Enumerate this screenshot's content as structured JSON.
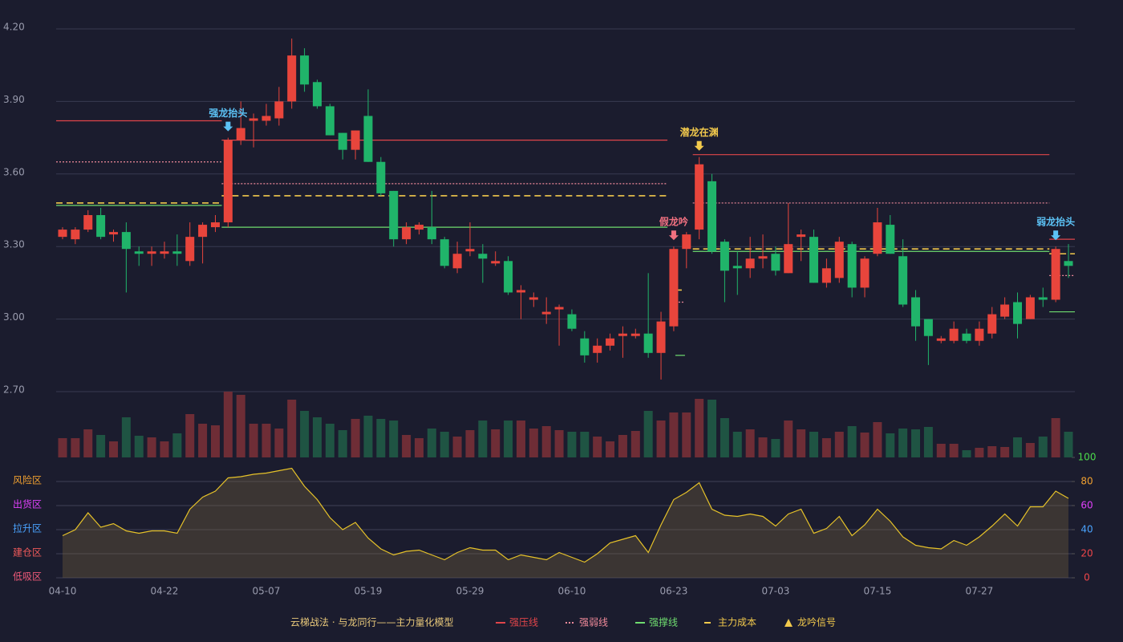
{
  "chart_data": {
    "type": "candlestick",
    "title": "云梯战法 · 与龙同行——主力量化模型",
    "categories": [
      "04-10",
      null,
      null,
      null,
      null,
      null,
      null,
      null,
      "04-22",
      null,
      null,
      null,
      null,
      null,
      null,
      null,
      "05-07",
      null,
      null,
      null,
      null,
      null,
      null,
      null,
      "05-19",
      null,
      null,
      null,
      null,
      null,
      null,
      null,
      "05-29",
      null,
      null,
      null,
      null,
      null,
      null,
      null,
      "06-10",
      null,
      null,
      null,
      null,
      null,
      null,
      null,
      "06-23",
      null,
      null,
      null,
      null,
      null,
      null,
      null,
      "07-03",
      null,
      null,
      null,
      null,
      null,
      null,
      null,
      "07-15",
      null,
      null,
      null,
      null,
      null,
      null,
      null,
      "07-27",
      null,
      null,
      null,
      null,
      null,
      null,
      null
    ],
    "open": [
      3.34,
      3.33,
      3.37,
      3.43,
      3.35,
      3.36,
      3.28,
      3.27,
      3.27,
      3.28,
      3.24,
      3.34,
      3.38,
      3.4,
      3.74,
      3.82,
      3.82,
      3.83,
      3.9,
      4.09,
      3.98,
      3.88,
      3.77,
      3.7,
      3.84,
      3.65,
      3.53,
      3.33,
      3.37,
      3.38,
      3.33,
      3.21,
      3.28,
      3.27,
      3.23,
      3.24,
      3.11,
      3.08,
      3.02,
      3.04,
      3.02,
      2.92,
      2.86,
      2.89,
      2.93,
      2.93,
      2.94,
      2.86,
      2.97,
      3.29,
      3.37,
      3.57,
      3.32,
      3.22,
      3.21,
      3.25,
      3.27,
      3.19,
      3.34,
      3.34,
      3.15,
      3.17,
      3.31,
      3.13,
      3.27,
      3.39,
      3.26,
      3.09,
      3.0,
      2.91,
      2.91,
      2.94,
      2.91,
      2.94,
      3.01,
      3.07,
      3.0,
      3.09,
      3.08,
      3.24
    ],
    "high": [
      3.38,
      3.38,
      3.45,
      3.46,
      3.37,
      3.4,
      3.3,
      3.3,
      3.32,
      3.35,
      3.4,
      3.4,
      3.43,
      3.75,
      3.9,
      3.85,
      3.89,
      3.96,
      4.16,
      4.12,
      3.99,
      3.89,
      3.77,
      3.78,
      3.95,
      3.67,
      3.53,
      3.4,
      3.4,
      3.53,
      3.34,
      3.32,
      3.4,
      3.31,
      3.28,
      3.26,
      3.14,
      3.11,
      3.09,
      3.06,
      3.04,
      2.95,
      2.92,
      2.94,
      2.97,
      2.96,
      3.19,
      3.03,
      3.3,
      3.36,
      3.67,
      3.6,
      3.33,
      3.28,
      3.34,
      3.35,
      3.3,
      3.48,
      3.37,
      3.37,
      3.25,
      3.34,
      3.32,
      3.26,
      3.46,
      3.43,
      3.33,
      3.12,
      3.0,
      2.93,
      2.99,
      2.96,
      2.99,
      3.05,
      3.09,
      3.11,
      3.1,
      3.13,
      3.3,
      3.31
    ],
    "low": [
      3.33,
      3.31,
      3.36,
      3.33,
      3.32,
      3.11,
      3.22,
      3.22,
      3.25,
      3.22,
      3.22,
      3.23,
      3.36,
      3.38,
      3.72,
      3.71,
      3.8,
      3.8,
      3.87,
      3.94,
      3.87,
      3.76,
      3.66,
      3.66,
      3.65,
      3.51,
      3.3,
      3.31,
      3.35,
      3.31,
      3.21,
      3.19,
      3.26,
      3.15,
      3.22,
      3.1,
      3.0,
      3.05,
      2.98,
      2.89,
      2.95,
      2.82,
      2.82,
      2.87,
      2.84,
      2.92,
      2.84,
      2.75,
      2.95,
      3.21,
      3.33,
      3.27,
      3.07,
      3.1,
      3.17,
      3.21,
      3.18,
      3.19,
      3.24,
      3.15,
      3.13,
      3.15,
      3.09,
      3.09,
      3.26,
      3.27,
      3.05,
      2.91,
      2.81,
      2.9,
      2.9,
      2.9,
      2.89,
      2.92,
      3.0,
      2.92,
      3.0,
      3.05,
      3.07,
      3.17
    ],
    "close": [
      3.37,
      3.37,
      3.43,
      3.34,
      3.36,
      3.29,
      3.27,
      3.28,
      3.28,
      3.27,
      3.34,
      3.39,
      3.4,
      3.74,
      3.79,
      3.83,
      3.84,
      3.9,
      4.09,
      3.97,
      3.88,
      3.76,
      3.7,
      3.78,
      3.65,
      3.52,
      3.33,
      3.38,
      3.39,
      3.33,
      3.22,
      3.27,
      3.29,
      3.25,
      3.24,
      3.11,
      3.12,
      3.09,
      3.03,
      3.05,
      2.96,
      2.85,
      2.89,
      2.92,
      2.94,
      2.94,
      2.86,
      2.99,
      3.29,
      3.35,
      3.64,
      3.28,
      3.2,
      3.21,
      3.25,
      3.26,
      3.2,
      3.31,
      3.35,
      3.15,
      3.21,
      3.32,
      3.13,
      3.25,
      3.4,
      3.27,
      3.06,
      2.97,
      2.93,
      2.92,
      2.96,
      2.91,
      2.96,
      3.02,
      3.06,
      2.98,
      3.09,
      3.08,
      3.29,
      3.22
    ],
    "volume": [
      24,
      24,
      35,
      28,
      20,
      50,
      27,
      25,
      20,
      30,
      54,
      42,
      40,
      82,
      78,
      42,
      42,
      36,
      72,
      58,
      50,
      42,
      34,
      48,
      52,
      48,
      46,
      28,
      24,
      36,
      32,
      26,
      34,
      46,
      35,
      46,
      46,
      36,
      39,
      34,
      32,
      32,
      26,
      20,
      28,
      33,
      58,
      46,
      56,
      56,
      73,
      72,
      49,
      32,
      35,
      25,
      23,
      46,
      35,
      32,
      24,
      32,
      39,
      31,
      44,
      30,
      36,
      35,
      38,
      17,
      17,
      9,
      12,
      14,
      13,
      25,
      18,
      26,
      49,
      32
    ],
    "up_color": "#e8453c",
    "down_color": "#20b46a",
    "volume_up_color": "#6e2d36",
    "volume_down_color": "#1f5443",
    "ylim": [
      2.7,
      4.2
    ],
    "yticks": [
      {
        "value": 2.7,
        "label": "2.70"
      },
      {
        "value": 3.0,
        "label": "3.00"
      },
      {
        "value": 3.3,
        "label": "3.30"
      },
      {
        "value": 3.6,
        "label": "3.60"
      },
      {
        "value": 3.9,
        "label": "3.90"
      },
      {
        "value": 4.2,
        "label": "4.20"
      }
    ],
    "grid": true,
    "levels": [
      {
        "name": "强压线",
        "color": "#e0454a",
        "style": "solid",
        "segments": [
          {
            "start": 0,
            "end": 12,
            "value": 3.82
          },
          {
            "start": 13,
            "end": 47,
            "value": 3.74
          },
          {
            "start": 50,
            "end": 77,
            "value": 3.68
          },
          {
            "start": 78,
            "end": 79,
            "value": 3.33
          }
        ]
      },
      {
        "name": "强弱线",
        "color": "#f08a9a",
        "style": "dotted",
        "segments": [
          {
            "start": 0,
            "end": 12,
            "value": 3.65
          },
          {
            "start": 13,
            "end": 47,
            "value": 3.56
          },
          {
            "start": 48,
            "end": 48,
            "value": 3.07
          },
          {
            "start": 50,
            "end": 77,
            "value": 3.48
          },
          {
            "start": 78,
            "end": 79,
            "value": 3.18
          }
        ]
      },
      {
        "name": "强撑线",
        "color": "#6fdc6f",
        "style": "solid",
        "segments": [
          {
            "start": 0,
            "end": 12,
            "value": 3.47
          },
          {
            "start": 13,
            "end": 47,
            "value": 3.38
          },
          {
            "start": 48,
            "end": 48,
            "value": 2.85
          },
          {
            "start": 50,
            "end": 77,
            "value": 3.28
          },
          {
            "start": 78,
            "end": 79,
            "value": 3.03
          }
        ]
      },
      {
        "name": "主力成本",
        "color": "#f2c94c",
        "style": "dashed",
        "segments": [
          {
            "start": 0,
            "end": 12,
            "value": 3.48
          },
          {
            "start": 13,
            "end": 47,
            "value": 3.51
          },
          {
            "start": 48,
            "end": 48,
            "value": 3.12
          },
          {
            "start": 50,
            "end": 77,
            "value": 3.29
          },
          {
            "start": 78,
            "end": 79,
            "value": 3.27
          }
        ]
      }
    ],
    "signal_legend": {
      "name": "龙吟信号",
      "color": "#f2c94c"
    },
    "signals": [
      {
        "label": "强龙抬头",
        "index": 13,
        "color": "#5cc2f5"
      },
      {
        "label": "假龙吟",
        "index": 48,
        "color": "#f07080"
      },
      {
        "label": "潜龙在渊",
        "index": 50,
        "color": "#f2c94c"
      },
      {
        "label": "弱龙抬头",
        "index": 78,
        "color": "#5cc2f5"
      }
    ],
    "indicator": {
      "values": [
        35,
        40,
        54,
        42,
        45,
        39,
        37,
        39,
        39,
        37,
        57,
        67,
        72,
        83,
        84,
        86,
        87,
        89,
        91,
        76,
        65,
        50,
        40,
        46,
        33,
        24,
        19,
        22,
        23,
        19,
        15,
        21,
        25,
        23,
        23,
        15,
        19,
        17,
        15,
        21,
        17,
        13,
        20,
        29,
        32,
        35,
        21,
        44,
        65,
        71,
        79,
        57,
        52,
        51,
        53,
        51,
        43,
        53,
        57,
        37,
        41,
        51,
        35,
        44,
        57,
        47,
        34,
        27,
        25,
        24,
        31,
        27,
        34,
        43,
        53,
        43,
        59,
        59,
        72,
        66
      ],
      "color": "#e6c229",
      "ylim": [
        0,
        100
      ],
      "yticks": [
        0,
        20,
        40,
        60,
        80,
        100
      ],
      "ytick_colors": [
        "#f0464a",
        "#f0464a",
        "#4aa3ff",
        "#e040fb",
        "#f0a030",
        "#4cdc4c"
      ],
      "zones": [
        {
          "label": "风险区",
          "value": 80,
          "color": "#f0a030"
        },
        {
          "label": "出货区",
          "value": 60,
          "color": "#e040fb"
        },
        {
          "label": "拉升区",
          "value": 40,
          "color": "#4aa3ff"
        },
        {
          "label": "建仓区",
          "value": 20,
          "color": "#f05a5a"
        },
        {
          "label": "低吸区",
          "value": 0,
          "color": "#f05a7a"
        }
      ]
    }
  }
}
